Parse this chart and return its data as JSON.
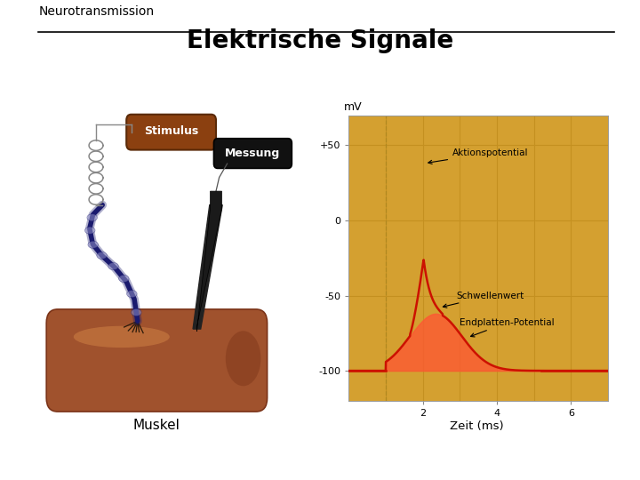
{
  "title": "Elektrische Signale",
  "subtitle": "Neurotransmission",
  "bg_color": "#ffffff",
  "graph_bg_color": "#D4A030",
  "line_color": "#CC1100",
  "fill_color": "#FF5533",
  "line_width": 1.8,
  "ylabel_graph": "mV",
  "xlabel_graph": "Zeit (ms)",
  "yticks": [
    -100,
    -50,
    0,
    50
  ],
  "ytick_labels": [
    "-100",
    "-50",
    "0",
    "+50"
  ],
  "xticks": [
    2,
    4,
    6
  ],
  "xlim": [
    0,
    7
  ],
  "ylim": [
    -120,
    70
  ],
  "grid_color": "#C49020",
  "dashed_line_x": 1.0,
  "muskel_label": "Muskel",
  "stimulus_label": "Stimulus",
  "messung_label": "Messung",
  "nerve_color": "#1a1a6e",
  "muscle_color": "#A0522D",
  "muscle_light": "#C87941",
  "muscle_dark": "#7B3318",
  "coil_color": "#888888",
  "probe_color": "#1a1a1a",
  "stimulus_box_color": "#8B4010",
  "messung_box_color": "#111111"
}
